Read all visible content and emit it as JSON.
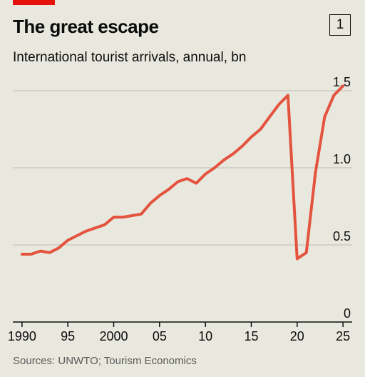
{
  "header": {
    "title": "The great escape",
    "chart_number": "1",
    "subtitle": "International tourist arrivals, annual, bn"
  },
  "footer": {
    "source": "Sources: UNWTO; Tourism Economics"
  },
  "colors": {
    "accent": "#e3120b",
    "line": "#e3533e",
    "grid": "#c6c5bd",
    "axis": "#0c0c0c",
    "background": "#e9e8df"
  },
  "chart_data": {
    "type": "line",
    "title": "The great escape",
    "subtitle": "International tourist arrivals, annual, bn",
    "xlabel": "",
    "ylabel": "",
    "xlim": [
      1989,
      2026
    ],
    "ylim": [
      0,
      1.5
    ],
    "grid": true,
    "y_ticks": [
      0,
      0.5,
      1.0,
      1.5
    ],
    "y_tick_labels": [
      "0",
      "0.5",
      "1.0",
      "1.5"
    ],
    "x_ticks": [
      1990,
      1995,
      2000,
      2005,
      2010,
      2015,
      2020,
      2025
    ],
    "x_tick_labels": [
      "1990",
      "95",
      "2000",
      "05",
      "10",
      "15",
      "20",
      "25"
    ],
    "series": [
      {
        "color": "#e3533e",
        "x": [
          1990,
          1991,
          1992,
          1993,
          1994,
          1995,
          1996,
          1997,
          1998,
          1999,
          2000,
          2001,
          2002,
          2003,
          2004,
          2005,
          2006,
          2007,
          2008,
          2009,
          2010,
          2011,
          2012,
          2013,
          2014,
          2015,
          2016,
          2017,
          2018,
          2019,
          2020,
          2021,
          2022,
          2023,
          2024,
          2025
        ],
        "values": [
          0.44,
          0.44,
          0.46,
          0.45,
          0.48,
          0.53,
          0.56,
          0.59,
          0.61,
          0.63,
          0.68,
          0.68,
          0.69,
          0.7,
          0.77,
          0.82,
          0.86,
          0.91,
          0.93,
          0.9,
          0.96,
          1.0,
          1.05,
          1.09,
          1.14,
          1.2,
          1.25,
          1.33,
          1.41,
          1.47,
          0.41,
          0.45,
          0.97,
          1.33,
          1.47,
          1.53
        ]
      }
    ]
  }
}
